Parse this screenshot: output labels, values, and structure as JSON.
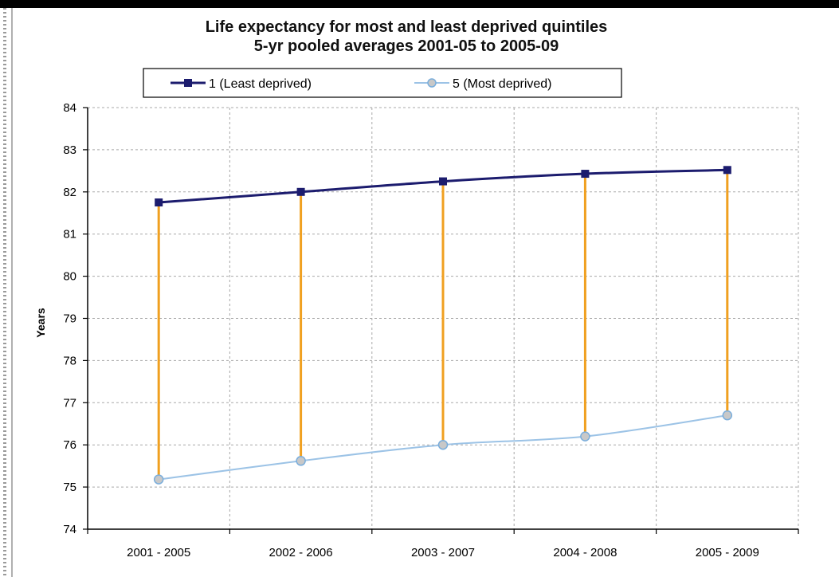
{
  "chart_data": {
    "type": "line",
    "title": "Life expectancy for most and least deprived quintiles",
    "subtitle": "5-yr pooled averages 2001-05 to 2005-09",
    "xlabel": "",
    "ylabel": "Years",
    "categories": [
      "2001 - 2005",
      "2002 - 2006",
      "2003 - 2007",
      "2004 - 2008",
      "2005 - 2009"
    ],
    "ylim": [
      74,
      84
    ],
    "yticks": [
      "74",
      "75",
      "76",
      "77",
      "78",
      "79",
      "80",
      "81",
      "82",
      "83",
      "84"
    ],
    "grid": true,
    "legend_placement": "top",
    "gap_lines": true,
    "gap_line_color": "#f0a020",
    "series": [
      {
        "name": "1 (Least deprived)",
        "values": [
          81.75,
          82.0,
          82.25,
          82.43,
          82.52
        ],
        "color": "#1c1c6e",
        "marker": "square"
      },
      {
        "name": "5 (Most deprived)",
        "values": [
          75.18,
          75.62,
          76.0,
          76.2,
          76.7
        ],
        "color": "#9cc3e6",
        "marker": "circle"
      }
    ]
  }
}
